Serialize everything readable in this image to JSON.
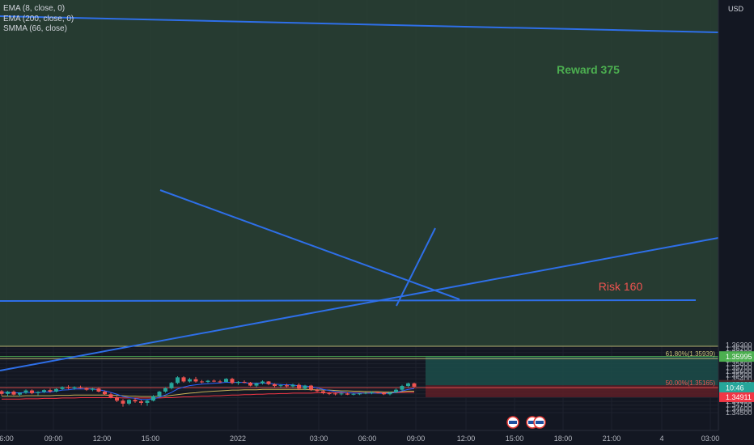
{
  "legend": {
    "items": [
      "EMA (8, close, 0)",
      "EMA (200, close, 0)",
      "SMMA (66, close)"
    ]
  },
  "currency": "USD",
  "chart_data": {
    "type": "candlestick",
    "x_ticks": [
      "6:00",
      "09:00",
      "12:00",
      "15:00",
      "2022",
      "03:00",
      "06:00",
      "09:00",
      "12:00",
      "15:00",
      "18:00",
      "21:00",
      "4",
      "03:00"
    ],
    "y_ticks": [
      1.345,
      1.346,
      1.347,
      1.348,
      1.349,
      1.35,
      1.351,
      1.352,
      1.353,
      1.354,
      1.355,
      1.356,
      1.357,
      1.358,
      1.359,
      1.36,
      1.361,
      1.362,
      1.363
    ],
    "ylim": [
      1.3445,
      1.3634
    ],
    "candles": [
      [
        1.3507,
        1.351,
        1.3495,
        1.35
      ],
      [
        1.35,
        1.3508,
        1.3494,
        1.3506
      ],
      [
        1.3506,
        1.3509,
        1.3496,
        1.3498
      ],
      [
        1.3498,
        1.3504,
        1.3493,
        1.3503
      ],
      [
        1.3503,
        1.3512,
        1.35,
        1.3509
      ],
      [
        1.3509,
        1.3512,
        1.3499,
        1.3502
      ],
      [
        1.3502,
        1.3507,
        1.3496,
        1.3505
      ],
      [
        1.3505,
        1.3512,
        1.3502,
        1.351
      ],
      [
        1.351,
        1.3514,
        1.3503,
        1.3506
      ],
      [
        1.3506,
        1.3515,
        1.3504,
        1.3513
      ],
      [
        1.3513,
        1.352,
        1.351,
        1.3518
      ],
      [
        1.3518,
        1.3523,
        1.3512,
        1.3515
      ],
      [
        1.3515,
        1.352,
        1.3511,
        1.3518
      ],
      [
        1.3518,
        1.3522,
        1.3514,
        1.3515
      ],
      [
        1.3515,
        1.3518,
        1.3508,
        1.3511
      ],
      [
        1.3511,
        1.3516,
        1.3507,
        1.3514
      ],
      [
        1.3514,
        1.3517,
        1.3504,
        1.3506
      ],
      [
        1.3506,
        1.3509,
        1.3496,
        1.3499
      ],
      [
        1.3499,
        1.3503,
        1.3488,
        1.3491
      ],
      [
        1.3491,
        1.3494,
        1.3478,
        1.3482
      ],
      [
        1.3482,
        1.3486,
        1.3466,
        1.3474
      ],
      [
        1.3474,
        1.3486,
        1.347,
        1.3484
      ],
      [
        1.3484,
        1.349,
        1.3476,
        1.348
      ],
      [
        1.348,
        1.3484,
        1.347,
        1.3476
      ],
      [
        1.3476,
        1.3484,
        1.3468,
        1.3482
      ],
      [
        1.3482,
        1.3497,
        1.348,
        1.3494
      ],
      [
        1.3494,
        1.3508,
        1.3492,
        1.3506
      ],
      [
        1.3506,
        1.3518,
        1.3503,
        1.3515
      ],
      [
        1.3515,
        1.3532,
        1.3512,
        1.3529
      ],
      [
        1.3529,
        1.3547,
        1.3526,
        1.3544
      ],
      [
        1.3544,
        1.3547,
        1.353,
        1.3533
      ],
      [
        1.3533,
        1.3543,
        1.353,
        1.3539
      ],
      [
        1.3539,
        1.3545,
        1.353,
        1.3533
      ],
      [
        1.3533,
        1.3537,
        1.3528,
        1.3532
      ],
      [
        1.3532,
        1.3537,
        1.3529,
        1.3535
      ],
      [
        1.3535,
        1.3538,
        1.3531,
        1.3533
      ],
      [
        1.3533,
        1.3537,
        1.3529,
        1.3532
      ],
      [
        1.3532,
        1.3542,
        1.353,
        1.354
      ],
      [
        1.354,
        1.3543,
        1.3526,
        1.3529
      ],
      [
        1.3529,
        1.3534,
        1.3524,
        1.3532
      ],
      [
        1.3532,
        1.3536,
        1.3528,
        1.353
      ],
      [
        1.353,
        1.3532,
        1.352,
        1.3522
      ],
      [
        1.3522,
        1.353,
        1.3518,
        1.3528
      ],
      [
        1.3528,
        1.3536,
        1.3525,
        1.3533
      ],
      [
        1.3533,
        1.3534,
        1.3523,
        1.3526
      ],
      [
        1.3526,
        1.3528,
        1.3518,
        1.3521
      ],
      [
        1.3521,
        1.3526,
        1.3516,
        1.3523
      ],
      [
        1.3523,
        1.3527,
        1.3517,
        1.352
      ],
      [
        1.352,
        1.3527,
        1.3516,
        1.3524
      ],
      [
        1.3524,
        1.3528,
        1.351,
        1.3514
      ],
      [
        1.3514,
        1.3524,
        1.351,
        1.3522
      ],
      [
        1.3522,
        1.3524,
        1.3508,
        1.3511
      ],
      [
        1.3511,
        1.3514,
        1.3505,
        1.3507
      ],
      [
        1.3507,
        1.351,
        1.3499,
        1.3502
      ],
      [
        1.3502,
        1.3505,
        1.3497,
        1.3501
      ],
      [
        1.3501,
        1.3504,
        1.3496,
        1.3499
      ],
      [
        1.3499,
        1.3503,
        1.3496,
        1.3501
      ],
      [
        1.3501,
        1.3504,
        1.3497,
        1.3498
      ],
      [
        1.3498,
        1.3502,
        1.3496,
        1.35
      ],
      [
        1.35,
        1.3503,
        1.3497,
        1.3501
      ],
      [
        1.3501,
        1.3505,
        1.3499,
        1.3503
      ],
      [
        1.3503,
        1.3507,
        1.3499,
        1.3504
      ],
      [
        1.3504,
        1.3507,
        1.3501,
        1.3502
      ],
      [
        1.3502,
        1.3504,
        1.3497,
        1.3499
      ],
      [
        1.3499,
        1.3506,
        1.3496,
        1.3504
      ],
      [
        1.3504,
        1.3514,
        1.3502,
        1.3511
      ],
      [
        1.3511,
        1.3524,
        1.3508,
        1.3521
      ],
      [
        1.3521,
        1.353,
        1.3518,
        1.3528
      ],
      [
        1.3528,
        1.353,
        1.3516,
        1.3519
      ]
    ],
    "ema8": [
      1.3504,
      1.3504,
      1.3503,
      1.3503,
      1.3504,
      1.3504,
      1.3504,
      1.3505,
      1.3505,
      1.3507,
      1.351,
      1.3511,
      1.3513,
      1.3513,
      1.3513,
      1.3513,
      1.3511,
      1.3508,
      1.3504,
      1.3499,
      1.3493,
      1.349,
      1.3488,
      1.3485,
      1.3485,
      1.3487,
      1.3491,
      1.3497,
      1.3504,
      1.3513,
      1.3518,
      1.3522,
      1.3524,
      1.3526,
      1.3527,
      1.3528,
      1.3529,
      1.3531,
      1.353,
      1.3531,
      1.353,
      1.3528,
      1.3528,
      1.3529,
      1.3528,
      1.3526,
      1.3525,
      1.3524,
      1.3524,
      1.3521,
      1.3521,
      1.3519,
      1.3516,
      1.3512,
      1.3509,
      1.3506,
      1.3505,
      1.3503,
      1.3502,
      1.3502,
      1.3502,
      1.3502,
      1.3502,
      1.3501,
      1.3502,
      1.3504,
      1.3508,
      1.3512,
      1.3514
    ],
    "ema200": [
      1.3486,
      1.3486,
      1.3486,
      1.3486,
      1.3487,
      1.3487,
      1.3487,
      1.3488,
      1.3488,
      1.3488,
      1.3489,
      1.3489,
      1.3489,
      1.349,
      1.349,
      1.349,
      1.349,
      1.349,
      1.349,
      1.349,
      1.3489,
      1.3489,
      1.3489,
      1.3489,
      1.3489,
      1.3489,
      1.3489,
      1.349,
      1.349,
      1.3491,
      1.3492,
      1.3492,
      1.3493,
      1.3494,
      1.3494,
      1.3495,
      1.3495,
      1.3496,
      1.3497,
      1.3497,
      1.3498,
      1.3498,
      1.3499,
      1.3499,
      1.35,
      1.35,
      1.3501,
      1.3501,
      1.3502,
      1.3502,
      1.3502,
      1.3502,
      1.3503,
      1.3503,
      1.3503,
      1.3503,
      1.3503,
      1.3503,
      1.3503,
      1.3503,
      1.3503,
      1.3503,
      1.3503,
      1.3503,
      1.3503,
      1.3503,
      1.3504,
      1.3504,
      1.3504
    ],
    "smma66": [
      1.3494,
      1.3494,
      1.3494,
      1.3494,
      1.3495,
      1.3495,
      1.3495,
      1.3495,
      1.3495,
      1.3496,
      1.3496,
      1.3496,
      1.3497,
      1.3497,
      1.3497,
      1.3497,
      1.3497,
      1.3497,
      1.3496,
      1.3496,
      1.3495,
      1.3494,
      1.3494,
      1.3493,
      1.3493,
      1.3493,
      1.3494,
      1.3494,
      1.3496,
      1.3498,
      1.35,
      1.3502,
      1.3503,
      1.3505,
      1.3506,
      1.3507,
      1.3508,
      1.3509,
      1.351,
      1.351,
      1.3511,
      1.3511,
      1.3511,
      1.3512,
      1.3512,
      1.3512,
      1.3512,
      1.3512,
      1.3512,
      1.3512,
      1.3512,
      1.3511,
      1.3511,
      1.351,
      1.351,
      1.3509,
      1.3508,
      1.3508,
      1.3507,
      1.3507,
      1.3506,
      1.3506,
      1.3506,
      1.3505,
      1.3505,
      1.3505,
      1.3506,
      1.3507,
      1.3507
    ],
    "horizontal_levels": [
      {
        "price": 1.36266,
        "color": "#c8c27a"
      },
      {
        "price": 1.35995,
        "color": "#4caf50"
      },
      {
        "price": 1.35939,
        "color": "#c8c27a",
        "label": "61.80%(1.35939)"
      },
      {
        "price": 1.35165,
        "color": "#ef5350",
        "label": "50.00%(1.35165)"
      }
    ],
    "reward_label": "Reward 375",
    "risk_label": "Risk 160",
    "price_badges": [
      {
        "text": "1.35995",
        "price": 1.36005,
        "bg": "#4caf50",
        "fg": "#ffffff"
      },
      {
        "text": "1.35995",
        "price": 1.35985,
        "bg": "#4caf50",
        "fg": "#ffffff"
      },
      {
        "text": "1.35228",
        "price": 1.3524,
        "bg": "#4a2a2e",
        "fg": "#ffffff"
      },
      {
        "text": "1.35188",
        "price": 1.35185,
        "bg": "#26a69a",
        "fg": "#ffffff"
      },
      {
        "text": "10:46",
        "price": 1.35155,
        "bg": "#26a69a",
        "fg": "#ffffff"
      },
      {
        "text": "1.34911",
        "price": 1.34911,
        "bg": "#f23645",
        "fg": "#ffffff"
      }
    ],
    "colors": {
      "background": "#131722",
      "up": "#26a69a",
      "down": "#ef5350",
      "ema8": "#2962ff",
      "ema200": "#f23645",
      "smma66": "#c9b458",
      "trendline": "#2e6fe8",
      "reward_zone": "#1c4a48",
      "risk_zone": "#5a1e27",
      "top_zone": "#2a4234"
    }
  }
}
